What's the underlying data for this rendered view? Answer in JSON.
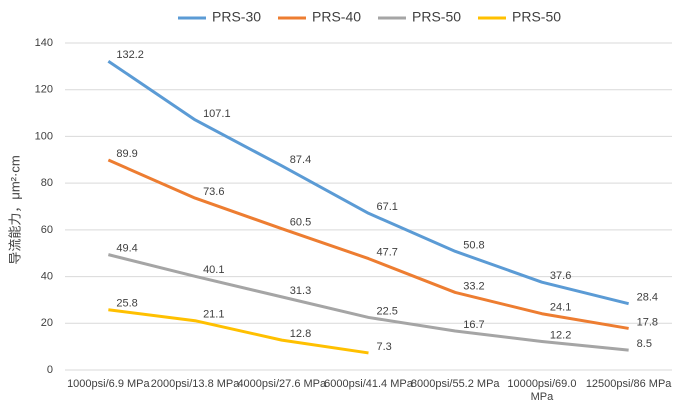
{
  "chart_data": {
    "type": "line",
    "y_label": "导流能力，μm²·cm",
    "categories": [
      "1000psi/6.9 MPa",
      "2000psi/13.8 MPa",
      "4000psi/27.6 MPa",
      "6000psi/41.4 MPa",
      "8000psi/55.2 MPa",
      "10000psi/69.0 MPa",
      "12500psi/86 MPa"
    ],
    "series": [
      {
        "name": "PRS-30",
        "color": "#5b9bd5",
        "values": [
          132.2,
          107.1,
          87.4,
          67.1,
          50.8,
          37.6,
          28.4
        ]
      },
      {
        "name": "PRS-40",
        "color": "#ed7d31",
        "values": [
          89.9,
          73.6,
          60.5,
          47.7,
          33.2,
          24.1,
          17.8
        ]
      },
      {
        "name": "PRS-50",
        "color": "#a5a5a5",
        "values": [
          49.4,
          40.1,
          31.3,
          22.5,
          16.7,
          12.2,
          8.5
        ]
      },
      {
        "name": "PRS-50",
        "color": "#ffc000",
        "values": [
          25.8,
          21.1,
          12.8,
          7.3,
          null,
          null,
          null
        ]
      }
    ],
    "ylim": [
      0,
      140
    ],
    "yticks": [
      0,
      20,
      40,
      60,
      80,
      100,
      120,
      140
    ],
    "grid": true,
    "legend": "top"
  }
}
